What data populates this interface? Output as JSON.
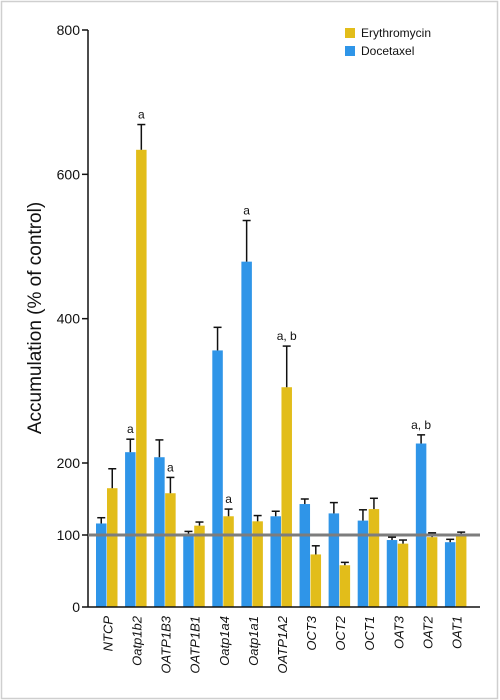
{
  "chart_data": {
    "type": "bar",
    "ylabel": "Accumulation (% of control)",
    "ylim": [
      0,
      800
    ],
    "yticks": [
      0,
      100,
      200,
      400,
      600,
      800
    ],
    "reference_line": 100,
    "legend_position": "top-right",
    "categories": [
      "NTCP",
      "Oatp1b2",
      "OATP1B3",
      "OATP1B1",
      "Oatp1a4",
      "Oatp1a1",
      "OATP1A2",
      "OCT3",
      "OCT2",
      "OCT1",
      "OAT3",
      "OAT2",
      "OAT1"
    ],
    "series": [
      {
        "name": "Docetaxel",
        "color": "#2f95e8",
        "values": [
          116,
          215,
          208,
          102,
          356,
          479,
          126,
          143,
          130,
          120,
          93,
          227,
          90
        ],
        "errors": [
          8,
          18,
          24,
          3,
          32,
          57,
          7,
          7,
          15,
          15,
          4,
          12,
          4
        ],
        "annotations": [
          "",
          "a",
          "",
          "",
          "",
          "a",
          "",
          "",
          "",
          "",
          "",
          "a, b",
          ""
        ]
      },
      {
        "name": "Erythromycin",
        "color": "#e2bd1a",
        "values": [
          165,
          634,
          158,
          113,
          126,
          119,
          305,
          73,
          58,
          136,
          88,
          97,
          98
        ],
        "errors": [
          27,
          35,
          22,
          5,
          10,
          8,
          57,
          12,
          4,
          15,
          5,
          6,
          6
        ],
        "annotations": [
          "",
          "a",
          "a",
          "",
          "a",
          "",
          "a, b",
          "",
          "",
          "",
          "",
          "",
          ""
        ]
      }
    ]
  }
}
